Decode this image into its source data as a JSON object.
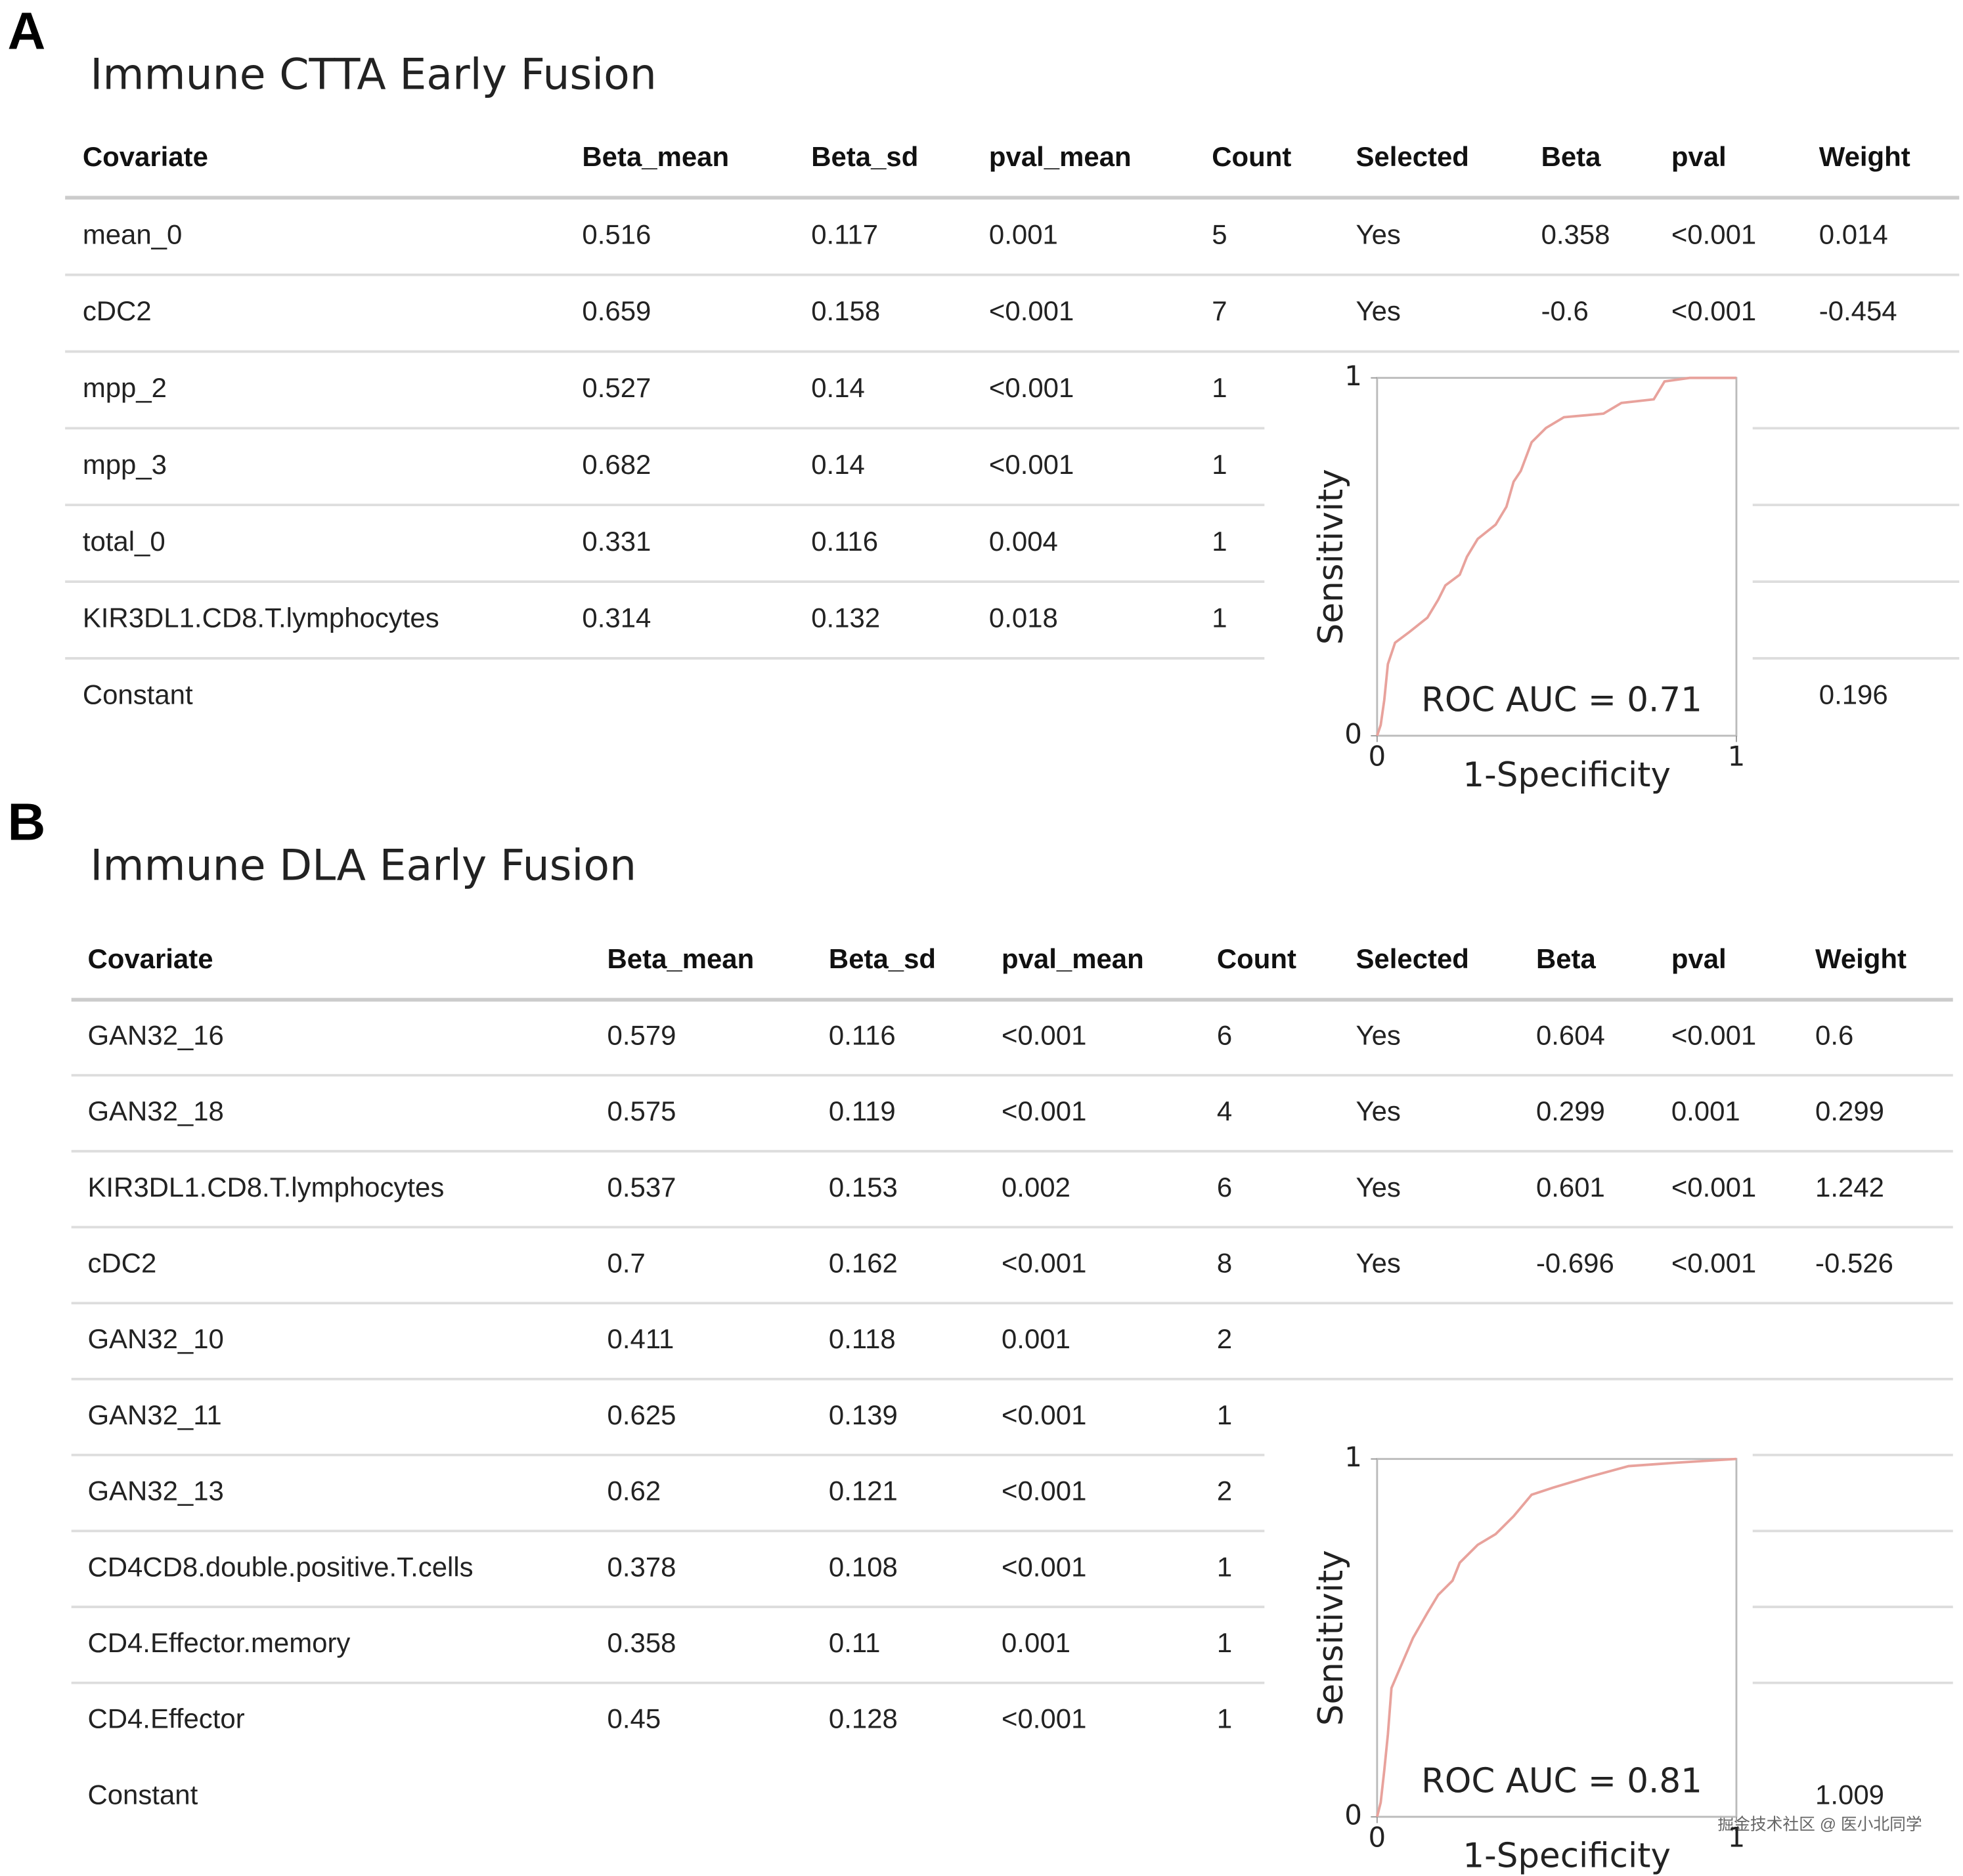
{
  "panels": [
    {
      "label": "A",
      "title": "Immune CTTA Early Fusion",
      "table": {
        "header": [
          "Covariate",
          "Beta_mean",
          "Beta_sd",
          "pval_mean",
          "Count",
          "Selected",
          "Beta",
          "pval",
          "Weight"
        ],
        "rows": [
          [
            "mean_0",
            "0.516",
            "0.117",
            "0.001",
            "5",
            "Yes",
            "0.358",
            "<0.001",
            "0.014"
          ],
          [
            "cDC2",
            "0.659",
            "0.158",
            "<0.001",
            "7",
            "Yes",
            "-0.6",
            "<0.001",
            "-0.454"
          ],
          [
            "mpp_2",
            "0.527",
            "0.14",
            "<0.001",
            "1",
            null,
            null,
            null,
            null
          ],
          [
            "mpp_3",
            "0.682",
            "0.14",
            "<0.001",
            "1",
            null,
            null,
            null,
            null
          ],
          [
            "total_0",
            "0.331",
            "0.116",
            "0.004",
            "1",
            null,
            null,
            null,
            null
          ],
          [
            "KIR3DL1.CD8.T.lymphocytes",
            "0.314",
            "0.132",
            "0.018",
            "1",
            null,
            null,
            null,
            null
          ],
          [
            "Constant",
            null,
            null,
            null,
            null,
            null,
            null,
            null,
            "0.196"
          ]
        ]
      },
      "roc": {
        "type": "line",
        "xlabel": "1-Specificity",
        "ylabel": "Sensitivity",
        "annotation": "ROC AUC = 0.71",
        "xlim": [
          0,
          1
        ],
        "ylim": [
          0,
          1
        ],
        "xticks": [
          0,
          1
        ],
        "yticks": [
          0,
          1
        ],
        "color": "#e8a29c",
        "x": [
          0,
          0.01,
          0.02,
          0.03,
          0.05,
          0.09,
          0.14,
          0.17,
          0.19,
          0.23,
          0.25,
          0.28,
          0.33,
          0.36,
          0.38,
          0.4,
          0.43,
          0.47,
          0.52,
          0.63,
          0.68,
          0.77,
          0.8,
          0.87,
          1
        ],
        "y": [
          0,
          0.03,
          0.1,
          0.2,
          0.26,
          0.29,
          0.33,
          0.38,
          0.42,
          0.45,
          0.5,
          0.55,
          0.59,
          0.64,
          0.71,
          0.74,
          0.82,
          0.86,
          0.89,
          0.9,
          0.93,
          0.94,
          0.99,
          1,
          1
        ]
      }
    },
    {
      "label": "B",
      "title": "Immune DLA Early Fusion",
      "table": {
        "header": [
          "Covariate",
          "Beta_mean",
          "Beta_sd",
          "pval_mean",
          "Count",
          "Selected",
          "Beta",
          "pval",
          "Weight"
        ],
        "rows": [
          [
            "GAN32_16",
            "0.579",
            "0.116",
            "<0.001",
            "6",
            "Yes",
            "0.604",
            "<0.001",
            "0.6"
          ],
          [
            "GAN32_18",
            "0.575",
            "0.119",
            "<0.001",
            "4",
            "Yes",
            "0.299",
            "0.001",
            "0.299"
          ],
          [
            "KIR3DL1.CD8.T.lymphocytes",
            "0.537",
            "0.153",
            "0.002",
            "6",
            "Yes",
            "0.601",
            "<0.001",
            "1.242"
          ],
          [
            "cDC2",
            "0.7",
            "0.162",
            "<0.001",
            "8",
            "Yes",
            "-0.696",
            "<0.001",
            "-0.526"
          ],
          [
            "GAN32_10",
            "0.411",
            "0.118",
            "0.001",
            "2",
            null,
            null,
            null,
            null
          ],
          [
            "GAN32_11",
            "0.625",
            "0.139",
            "<0.001",
            "1",
            null,
            null,
            null,
            null
          ],
          [
            "GAN32_13",
            "0.62",
            "0.121",
            "<0.001",
            "2",
            null,
            null,
            null,
            null
          ],
          [
            "CD4CD8.double.positive.T.cells",
            "0.378",
            "0.108",
            "<0.001",
            "1",
            null,
            null,
            null,
            null
          ],
          [
            "CD4.Effector.memory",
            "0.358",
            "0.11",
            "0.001",
            "1",
            null,
            null,
            null,
            null
          ],
          [
            "CD4.Effector",
            "0.45",
            "0.128",
            "<0.001",
            "1",
            null,
            null,
            null,
            null
          ],
          [
            "Constant",
            null,
            null,
            null,
            null,
            null,
            null,
            null,
            "1.009"
          ]
        ]
      },
      "roc": {
        "type": "line",
        "xlabel": "1-Specificity",
        "ylabel": "Sensitivity",
        "annotation": "ROC AUC = 0.81",
        "xlim": [
          0,
          1
        ],
        "ylim": [
          0,
          1
        ],
        "xticks": [
          0,
          1
        ],
        "yticks": [
          0,
          1
        ],
        "color": "#e8a29c",
        "x": [
          0,
          0.01,
          0.02,
          0.03,
          0.04,
          0.07,
          0.1,
          0.14,
          0.17,
          0.21,
          0.23,
          0.28,
          0.33,
          0.38,
          0.43,
          0.49,
          0.59,
          0.7,
          0.84,
          1
        ],
        "y": [
          0,
          0.04,
          0.13,
          0.23,
          0.36,
          0.43,
          0.5,
          0.57,
          0.62,
          0.66,
          0.71,
          0.76,
          0.79,
          0.84,
          0.9,
          0.92,
          0.95,
          0.98,
          0.99,
          1
        ]
      }
    }
  ],
  "watermark": "掘金技术社区 @ 医小北同学"
}
